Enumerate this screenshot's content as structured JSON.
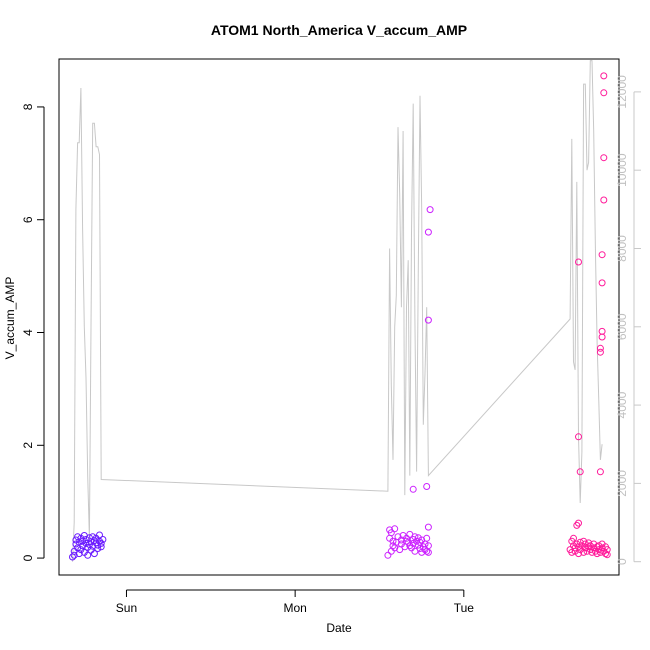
{
  "chart_data": {
    "type": "scatter",
    "title": "ATOM1 North_America V_accum_AMP",
    "xlabel": "Date",
    "ylabel": "V_accum_AMP",
    "x_ticks": [
      "Sun",
      "Mon",
      "Tue"
    ],
    "x_tick_days": [
      1,
      2,
      3
    ],
    "xlim_days": [
      0.6,
      3.92
    ],
    "ylim": [
      -0.3,
      8.85
    ],
    "y_ticks": [
      0,
      2,
      4,
      6,
      8
    ],
    "y2_ticks": [
      0,
      2000,
      4000,
      6000,
      8000,
      10000,
      12000
    ],
    "y2lim": [
      -340,
      12840
    ],
    "secondary_line_color": "#c8c8c8",
    "colors": {
      "sun_cluster": "#6a1aff",
      "mon_cluster": "#cc22ff",
      "tue_cluster": "#ff1a9a"
    },
    "scatter_series": [
      {
        "color": "#6a1aff",
        "points": [
          [
            0.68,
            0.02
          ],
          [
            0.69,
            0.05
          ],
          [
            0.69,
            0.12
          ],
          [
            0.7,
            0.25
          ],
          [
            0.7,
            0.32
          ],
          [
            0.71,
            0.18
          ],
          [
            0.71,
            0.38
          ],
          [
            0.72,
            0.08
          ],
          [
            0.72,
            0.28
          ],
          [
            0.73,
            0.35
          ],
          [
            0.73,
            0.15
          ],
          [
            0.74,
            0.22
          ],
          [
            0.74,
            0.3
          ],
          [
            0.75,
            0.4
          ],
          [
            0.75,
            0.1
          ],
          [
            0.76,
            0.26
          ],
          [
            0.76,
            0.33
          ],
          [
            0.77,
            0.19
          ],
          [
            0.77,
            0.05
          ],
          [
            0.78,
            0.36
          ],
          [
            0.78,
            0.24
          ],
          [
            0.79,
            0.29
          ],
          [
            0.79,
            0.14
          ],
          [
            0.8,
            0.38
          ],
          [
            0.8,
            0.21
          ],
          [
            0.81,
            0.31
          ],
          [
            0.81,
            0.08
          ],
          [
            0.82,
            0.27
          ],
          [
            0.82,
            0.35
          ],
          [
            0.83,
            0.17
          ],
          [
            0.83,
            0.23
          ],
          [
            0.84,
            0.41
          ],
          [
            0.84,
            0.3
          ],
          [
            0.85,
            0.2
          ],
          [
            0.85,
            0.26
          ],
          [
            0.86,
            0.33
          ]
        ]
      },
      {
        "color": "#cc22ff",
        "points": [
          [
            2.55,
            0.05
          ],
          [
            2.56,
            0.5
          ],
          [
            2.56,
            0.35
          ],
          [
            2.57,
            0.12
          ],
          [
            2.57,
            0.45
          ],
          [
            2.58,
            0.3
          ],
          [
            2.58,
            0.22
          ],
          [
            2.59,
            0.52
          ],
          [
            2.59,
            0.18
          ],
          [
            2.6,
            0.28
          ],
          [
            2.61,
            0.38
          ],
          [
            2.62,
            0.15
          ],
          [
            2.63,
            0.32
          ],
          [
            2.63,
            0.25
          ],
          [
            2.64,
            0.4
          ],
          [
            2.65,
            0.2
          ],
          [
            2.66,
            0.3
          ],
          [
            2.66,
            0.35
          ],
          [
            2.67,
            0.28
          ],
          [
            2.68,
            0.22
          ],
          [
            2.68,
            0.42
          ],
          [
            2.69,
            0.18
          ],
          [
            2.7,
            0.33
          ],
          [
            2.7,
            0.26
          ],
          [
            2.71,
            0.38
          ],
          [
            2.71,
            0.12
          ],
          [
            2.72,
            0.3
          ],
          [
            2.73,
            0.23
          ],
          [
            2.73,
            0.36
          ],
          [
            2.74,
            0.17
          ],
          [
            2.74,
            0.28
          ],
          [
            2.75,
            0.1
          ],
          [
            2.75,
            0.32
          ],
          [
            2.76,
            0.2
          ],
          [
            2.77,
            0.25
          ],
          [
            2.77,
            0.15
          ],
          [
            2.78,
            0.12
          ],
          [
            2.78,
            0.35
          ],
          [
            2.79,
            0.1
          ],
          [
            2.79,
            0.22
          ],
          [
            2.7,
            1.22
          ],
          [
            2.78,
            1.27
          ],
          [
            2.79,
            0.55
          ],
          [
            2.79,
            4.22
          ],
          [
            2.79,
            5.78
          ],
          [
            2.8,
            6.18
          ]
        ]
      },
      {
        "color": "#ff1a9a",
        "points": [
          [
            3.63,
            0.15
          ],
          [
            3.64,
            0.3
          ],
          [
            3.64,
            0.1
          ],
          [
            3.65,
            0.22
          ],
          [
            3.65,
            0.35
          ],
          [
            3.66,
            0.18
          ],
          [
            3.66,
            0.12
          ],
          [
            3.67,
            0.25
          ],
          [
            3.68,
            0.2
          ],
          [
            3.68,
            0.08
          ],
          [
            3.69,
            0.28
          ],
          [
            3.69,
            0.15
          ],
          [
            3.7,
            0.22
          ],
          [
            3.71,
            0.1
          ],
          [
            3.71,
            0.3
          ],
          [
            3.72,
            0.18
          ],
          [
            3.72,
            0.25
          ],
          [
            3.73,
            0.12
          ],
          [
            3.74,
            0.2
          ],
          [
            3.74,
            0.27
          ],
          [
            3.75,
            0.15
          ],
          [
            3.75,
            0.22
          ],
          [
            3.76,
            0.1
          ],
          [
            3.77,
            0.18
          ],
          [
            3.77,
            0.25
          ],
          [
            3.78,
            0.12
          ],
          [
            3.79,
            0.2
          ],
          [
            3.79,
            0.08
          ],
          [
            3.8,
            0.15
          ],
          [
            3.8,
            0.22
          ],
          [
            3.81,
            0.1
          ],
          [
            3.82,
            0.18
          ],
          [
            3.82,
            0.25
          ],
          [
            3.83,
            0.12
          ],
          [
            3.84,
            0.08
          ],
          [
            3.84,
            0.2
          ],
          [
            3.85,
            0.15
          ],
          [
            3.85,
            0.06
          ],
          [
            3.67,
            0.58
          ],
          [
            3.68,
            0.62
          ],
          [
            3.68,
            2.15
          ],
          [
            3.69,
            1.53
          ],
          [
            3.68,
            5.25
          ],
          [
            3.81,
            1.53
          ],
          [
            3.81,
            3.72
          ],
          [
            3.81,
            3.65
          ],
          [
            3.82,
            3.92
          ],
          [
            3.82,
            4.02
          ],
          [
            3.82,
            4.88
          ],
          [
            3.82,
            5.38
          ],
          [
            3.83,
            6.35
          ],
          [
            3.83,
            7.1
          ],
          [
            3.83,
            8.25
          ],
          [
            3.83,
            8.55
          ]
        ]
      }
    ],
    "line_series": {
      "color": "#c8c8c8",
      "points": [
        [
          0.68,
          0
        ],
        [
          0.69,
          1000
        ],
        [
          0.7,
          9000
        ],
        [
          0.71,
          10700
        ],
        [
          0.72,
          10700
        ],
        [
          0.73,
          12100
        ],
        [
          0.74,
          8500
        ],
        [
          0.75,
          6000
        ],
        [
          0.76,
          4700
        ],
        [
          0.77,
          2200
        ],
        [
          0.78,
          600
        ],
        [
          0.79,
          6000
        ],
        [
          0.8,
          11200
        ],
        [
          0.81,
          11200
        ],
        [
          0.82,
          10600
        ],
        [
          0.83,
          10600
        ],
        [
          0.84,
          10400
        ],
        [
          0.85,
          2100
        ],
        [
          2.55,
          1800
        ],
        [
          2.56,
          8000
        ],
        [
          2.57,
          4500
        ],
        [
          2.58,
          2600
        ],
        [
          2.59,
          6000
        ],
        [
          2.6,
          6800
        ],
        [
          2.61,
          11100
        ],
        [
          2.62,
          9400
        ],
        [
          2.63,
          6500
        ],
        [
          2.64,
          11000
        ],
        [
          2.65,
          1700
        ],
        [
          2.66,
          6500
        ],
        [
          2.67,
          7700
        ],
        [
          2.68,
          2200
        ],
        [
          2.69,
          8400
        ],
        [
          2.7,
          11700
        ],
        [
          2.71,
          6200
        ],
        [
          2.72,
          2300
        ],
        [
          2.73,
          7500
        ],
        [
          2.74,
          11900
        ],
        [
          2.75,
          9000
        ],
        [
          2.76,
          3500
        ],
        [
          2.77,
          4800
        ],
        [
          2.78,
          6500
        ],
        [
          2.79,
          2200
        ],
        [
          3.63,
          6200
        ],
        [
          3.64,
          10800
        ],
        [
          3.65,
          5100
        ],
        [
          3.66,
          4900
        ],
        [
          3.67,
          9700
        ],
        [
          3.68,
          3200
        ],
        [
          3.69,
          1500
        ],
        [
          3.7,
          2800
        ],
        [
          3.71,
          12200
        ],
        [
          3.72,
          12200
        ],
        [
          3.73,
          10000
        ],
        [
          3.74,
          10200
        ],
        [
          3.75,
          12800
        ],
        [
          3.76,
          12800
        ],
        [
          3.77,
          11000
        ],
        [
          3.78,
          8000
        ],
        [
          3.79,
          5600
        ],
        [
          3.8,
          4100
        ],
        [
          3.81,
          2600
        ],
        [
          3.82,
          3000
        ]
      ]
    }
  }
}
